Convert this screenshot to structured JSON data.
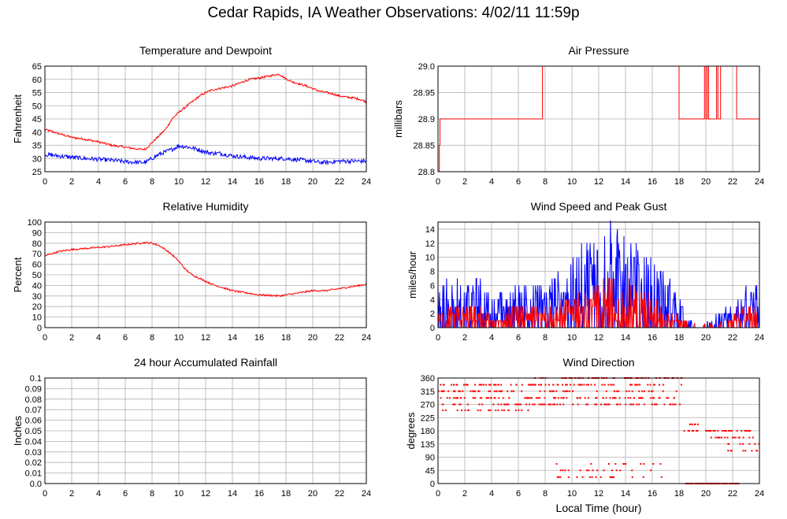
{
  "title": "Cedar Rapids, IA Weather Observations: 4/02/11 11:59p",
  "x_axis_label": "Local Time (hour)",
  "colors": {
    "red": "#ff0000",
    "blue": "#0000ff",
    "grid": "#b0b0b0",
    "frame": "#000000"
  },
  "chart_data": [
    {
      "id": "temp",
      "type": "line",
      "title": "Temperature and Dewpoint",
      "ylabel": "Fahrenheit",
      "xlim": [
        0,
        24
      ],
      "xticks": [
        0,
        2,
        4,
        6,
        8,
        10,
        12,
        14,
        16,
        18,
        20,
        22,
        24
      ],
      "ylim": [
        25,
        65
      ],
      "yticks": [
        25,
        30,
        35,
        40,
        45,
        50,
        55,
        60,
        65
      ],
      "grid": true,
      "series": [
        {
          "color": "#ff0000",
          "noise": 0.4,
          "x": [
            0,
            1,
            2,
            3,
            4,
            5,
            6,
            7,
            7.5,
            8,
            8.5,
            9,
            9.5,
            10,
            10.5,
            11,
            11.5,
            12,
            12.5,
            13,
            13.5,
            14,
            14.5,
            15,
            15.5,
            16,
            16.5,
            17,
            17.5,
            18,
            18.5,
            19,
            19.5,
            20,
            20.5,
            21,
            21.5,
            22,
            22.5,
            23,
            23.5,
            24
          ],
          "values": [
            41,
            39.5,
            38,
            37.3,
            36.3,
            35,
            34.3,
            33.5,
            33.5,
            36,
            38.5,
            41,
            45,
            47.5,
            49.5,
            51.5,
            53.5,
            55,
            56,
            56.5,
            57,
            57.5,
            58.5,
            59.5,
            60.2,
            60.5,
            61,
            61.5,
            62,
            60.2,
            59,
            58.3,
            57.5,
            56.5,
            55.5,
            55,
            54.5,
            53.7,
            53.3,
            53,
            52.5,
            51.5
          ]
        },
        {
          "color": "#0000ff",
          "noise": 0.8,
          "x": [
            0,
            1,
            2,
            3,
            4,
            5,
            6,
            7,
            7.5,
            8,
            8.5,
            9,
            9.5,
            10,
            10.5,
            11,
            11.5,
            12,
            12.5,
            13,
            14,
            15,
            16,
            17,
            18,
            18.5,
            19,
            20,
            20.5,
            21,
            22,
            23,
            24
          ],
          "values": [
            31.5,
            31,
            30.5,
            30,
            29.7,
            29.3,
            28.8,
            28.5,
            28.5,
            30,
            31.5,
            32.5,
            33.5,
            34.8,
            34.5,
            34,
            33.3,
            32.5,
            32,
            32,
            31,
            30.5,
            30,
            30,
            30,
            29.7,
            29.5,
            29,
            28.5,
            28.5,
            29,
            29,
            29
          ]
        }
      ]
    },
    {
      "id": "pressure",
      "type": "line",
      "title": "Air Pressure",
      "ylabel": "millibars",
      "xlim": [
        0,
        24
      ],
      "xticks": [
        0,
        2,
        4,
        6,
        8,
        10,
        12,
        14,
        16,
        18,
        20,
        22,
        24
      ],
      "ylim": [
        28.8,
        29.0
      ],
      "yticks": [
        28.8,
        28.85,
        28.9,
        28.95,
        29.0
      ],
      "ytick_labels": [
        "28.8",
        "28.85",
        "28.9",
        "28.95",
        "29.0"
      ],
      "grid": true,
      "series": [
        {
          "color": "#ff0000",
          "step": true,
          "x": [
            0,
            0.1,
            0.1,
            0.15,
            0.15,
            7.8,
            7.8,
            18.0,
            18.0,
            19.9,
            19.9,
            20.0,
            20.0,
            20.1,
            20.1,
            20.2,
            20.2,
            20.8,
            20.8,
            20.9,
            20.9,
            21.1,
            21.1,
            22.3,
            22.3,
            24
          ],
          "values": [
            28.8,
            28.8,
            28.85,
            28.85,
            28.9,
            28.9,
            29.0,
            29.0,
            28.9,
            28.9,
            29.0,
            29.0,
            28.9,
            28.9,
            29.0,
            29.0,
            28.9,
            28.9,
            29.0,
            29.0,
            28.9,
            28.9,
            29.0,
            29.0,
            28.9,
            28.9
          ]
        }
      ]
    },
    {
      "id": "rh",
      "type": "line",
      "title": "Relative Humidity",
      "ylabel": "Percent",
      "xlim": [
        0,
        24
      ],
      "xticks": [
        0,
        2,
        4,
        6,
        8,
        10,
        12,
        14,
        16,
        18,
        20,
        22,
        24
      ],
      "ylim": [
        0,
        100
      ],
      "yticks": [
        0,
        10,
        20,
        30,
        40,
        50,
        60,
        70,
        80,
        90,
        100
      ],
      "grid": true,
      "series": [
        {
          "color": "#ff0000",
          "noise": 0.8,
          "x": [
            0,
            0.5,
            1,
            2,
            3,
            4,
            5,
            6,
            7,
            7.5,
            8,
            8.5,
            9,
            9.5,
            10,
            10.5,
            11,
            11.5,
            12,
            12.5,
            13,
            13.5,
            14,
            15,
            16,
            17,
            17.5,
            18,
            19,
            20,
            21,
            22,
            23,
            24
          ],
          "values": [
            68,
            70,
            72,
            74,
            75,
            76,
            77,
            78.5,
            80,
            80.5,
            80,
            78,
            74,
            69,
            63,
            55,
            50,
            47,
            44,
            41,
            39,
            37,
            35,
            33,
            31,
            30.5,
            30,
            31,
            33,
            35,
            35,
            37,
            39,
            41
          ]
        }
      ]
    },
    {
      "id": "wind",
      "type": "line",
      "title": "Wind Speed and Peak Gust",
      "ylabel": "miles/hour",
      "xlim": [
        0,
        24
      ],
      "xticks": [
        0,
        2,
        4,
        6,
        8,
        10,
        12,
        14,
        16,
        18,
        20,
        22,
        24
      ],
      "ylim": [
        0,
        15
      ],
      "yticks": [
        0,
        2,
        4,
        6,
        8,
        10,
        12,
        14
      ],
      "grid": true,
      "series": [
        {
          "color": "#0000ff",
          "jagged": true,
          "gap_start": 19.0,
          "gap_end": 20.8,
          "x": [
            0,
            1,
            2,
            3,
            4,
            5,
            6,
            7,
            8,
            9,
            10,
            11,
            12,
            13,
            14,
            15,
            16,
            17,
            18,
            18.5,
            19,
            20.5,
            21,
            22,
            23,
            24
          ],
          "values": [
            4,
            5,
            4,
            4.5,
            3,
            3.5,
            4,
            4,
            4,
            5,
            6,
            8,
            9,
            10,
            10,
            7,
            6,
            5,
            3,
            1.5,
            0.5,
            0.5,
            1.5,
            2,
            3.5,
            4
          ]
        },
        {
          "color": "#ff0000",
          "jagged": true,
          "gap_start": 18.6,
          "gap_end": 21.5,
          "x": [
            0,
            1,
            2,
            3,
            4,
            5,
            6,
            7,
            8,
            9,
            10,
            11,
            12,
            13,
            14,
            15,
            16,
            17,
            18,
            18.5,
            21.5,
            22,
            23,
            24
          ],
          "values": [
            1.5,
            2,
            2,
            2,
            1,
            1.5,
            2,
            2,
            2,
            2.5,
            3,
            4,
            4,
            5,
            5,
            3.5,
            3,
            2,
            1,
            0.5,
            0.5,
            1.5,
            2,
            2
          ]
        }
      ]
    },
    {
      "id": "rain",
      "type": "line",
      "title": "24 hour Accumulated Rainfall",
      "ylabel": "Inches",
      "xlim": [
        0,
        24
      ],
      "xticks": [
        0,
        2,
        4,
        6,
        8,
        10,
        12,
        14,
        16,
        18,
        20,
        22,
        24
      ],
      "ylim": [
        0,
        0.1
      ],
      "yticks": [
        0,
        0.01,
        0.02,
        0.03,
        0.04,
        0.05,
        0.06,
        0.07,
        0.08,
        0.09,
        0.1
      ],
      "ytick_labels": [
        "0.0",
        "0.01",
        "0.02",
        "0.03",
        "0.04",
        "0.05",
        "0.06",
        "0.07",
        "0.08",
        "0.09",
        "0.1"
      ],
      "grid": true,
      "series": [
        {
          "color": "#ff0000",
          "x": [
            0,
            24
          ],
          "values": [
            0,
            0
          ]
        }
      ]
    },
    {
      "id": "wdir",
      "type": "scatter",
      "title": "Wind Direction",
      "ylabel": "degrees",
      "xlabel": "Local Time (hour)",
      "xlim": [
        0,
        24
      ],
      "xticks": [
        0,
        2,
        4,
        6,
        8,
        10,
        12,
        14,
        16,
        18,
        20,
        22,
        24
      ],
      "ylim": [
        0,
        360
      ],
      "yticks": [
        0,
        45,
        90,
        135,
        180,
        225,
        270,
        315,
        360
      ],
      "grid": true,
      "series": [
        {
          "color": "#ff0000",
          "bands": [
            {
              "x0": 0.0,
              "x1": 7.2,
              "levels": [
                270,
                292,
                315,
                250,
                337
              ],
              "density": 1.0
            },
            {
              "x0": 7.2,
              "x1": 18.2,
              "levels": [
                360,
                337,
                315,
                292,
                270
              ],
              "density": 1.0
            },
            {
              "x0": 8.8,
              "x1": 16.8,
              "levels": [
                22,
                45,
                67
              ],
              "density": 0.25
            },
            {
              "x0": 18.5,
              "x1": 22.5,
              "levels": [
                0
              ],
              "density": 1.0
            },
            {
              "x0": 18.3,
              "x1": 19.5,
              "levels": [
                180,
                202
              ],
              "density": 0.5
            },
            {
              "x0": 20.0,
              "x1": 21.5,
              "levels": [
                157,
                180
              ],
              "density": 0.6
            },
            {
              "x0": 21.5,
              "x1": 24.0,
              "levels": [
                112,
                135,
                157,
                180
              ],
              "density": 0.7
            }
          ]
        }
      ]
    }
  ]
}
